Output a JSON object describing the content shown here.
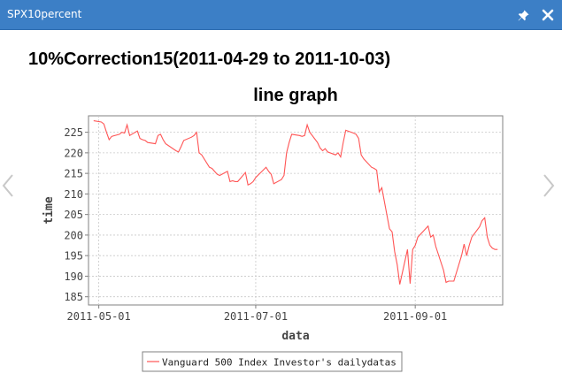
{
  "window": {
    "title": "SPX10percent",
    "pin_icon": "pin-icon",
    "close_icon": "close-icon",
    "prev_icon": "chevron-left-icon",
    "next_icon": "chevron-right-icon"
  },
  "heading": "10%Correction15(2011-04-29 to 2011-10-03)",
  "colors": {
    "titlebar": "#3c7fc6",
    "series": "#ff5555"
  },
  "chart_data": {
    "type": "line",
    "title": "line graph",
    "xlabel": "data",
    "ylabel": "time",
    "x_ticks": [
      "2011-05-01",
      "2011-07-01",
      "2011-09-01"
    ],
    "y_ticks": [
      185,
      190,
      195,
      200,
      205,
      210,
      215,
      220,
      225
    ],
    "xlim": [
      "2011-04-27",
      "2011-10-05"
    ],
    "ylim": [
      183,
      229
    ],
    "grid": true,
    "legend_position": "bottom",
    "series": [
      {
        "name": "Vanguard 500 Index Investor's dailydatas",
        "color": "#ff5555",
        "points": [
          [
            "2011-04-29",
            227.8
          ],
          [
            "2011-05-02",
            227.5
          ],
          [
            "2011-05-03",
            227.0
          ],
          [
            "2011-05-04",
            225.0
          ],
          [
            "2011-05-05",
            223.2
          ],
          [
            "2011-05-06",
            224.0
          ],
          [
            "2011-05-09",
            224.5
          ],
          [
            "2011-05-10",
            225.0
          ],
          [
            "2011-05-11",
            224.8
          ],
          [
            "2011-05-12",
            226.8
          ],
          [
            "2011-05-13",
            224.2
          ],
          [
            "2011-05-16",
            225.3
          ],
          [
            "2011-05-17",
            223.5
          ],
          [
            "2011-05-18",
            223.2
          ],
          [
            "2011-05-19",
            223.0
          ],
          [
            "2011-05-20",
            222.5
          ],
          [
            "2011-05-23",
            222.2
          ],
          [
            "2011-05-24",
            224.2
          ],
          [
            "2011-05-25",
            224.5
          ],
          [
            "2011-05-26",
            223.2
          ],
          [
            "2011-05-27",
            222.2
          ],
          [
            "2011-05-31",
            220.5
          ],
          [
            "2011-06-01",
            220.2
          ],
          [
            "2011-06-02",
            221.5
          ],
          [
            "2011-06-03",
            223.0
          ],
          [
            "2011-06-06",
            223.8
          ],
          [
            "2011-06-07",
            224.2
          ],
          [
            "2011-06-08",
            225.0
          ],
          [
            "2011-06-09",
            220.0
          ],
          [
            "2011-06-10",
            219.5
          ],
          [
            "2011-06-13",
            216.5
          ],
          [
            "2011-06-14",
            216.2
          ],
          [
            "2011-06-15",
            215.5
          ],
          [
            "2011-06-16",
            214.8
          ],
          [
            "2011-06-17",
            214.5
          ],
          [
            "2011-06-20",
            215.5
          ],
          [
            "2011-06-21",
            213.0
          ],
          [
            "2011-06-22",
            213.2
          ],
          [
            "2011-06-23",
            213.0
          ],
          [
            "2011-06-24",
            213.0
          ],
          [
            "2011-06-27",
            215.2
          ],
          [
            "2011-06-28",
            212.2
          ],
          [
            "2011-06-29",
            212.5
          ],
          [
            "2011-06-30",
            213.0
          ],
          [
            "2011-07-01",
            214.0
          ],
          [
            "2011-07-05",
            216.5
          ],
          [
            "2011-07-06",
            215.5
          ],
          [
            "2011-07-07",
            214.8
          ],
          [
            "2011-07-08",
            212.5
          ],
          [
            "2011-07-11",
            213.5
          ],
          [
            "2011-07-12",
            214.5
          ],
          [
            "2011-07-13",
            220.0
          ],
          [
            "2011-07-14",
            222.5
          ],
          [
            "2011-07-15",
            224.5
          ],
          [
            "2011-07-18",
            224.2
          ],
          [
            "2011-07-19",
            224.0
          ],
          [
            "2011-07-20",
            224.2
          ],
          [
            "2011-07-21",
            226.8
          ],
          [
            "2011-07-22",
            225.0
          ],
          [
            "2011-07-25",
            222.5
          ],
          [
            "2011-07-26",
            221.2
          ],
          [
            "2011-07-27",
            220.5
          ],
          [
            "2011-07-28",
            221.0
          ],
          [
            "2011-07-29",
            220.2
          ],
          [
            "2011-08-01",
            219.5
          ],
          [
            "2011-08-02",
            220.0
          ],
          [
            "2011-08-03",
            219.0
          ],
          [
            "2011-08-04",
            222.5
          ],
          [
            "2011-08-05",
            225.5
          ],
          [
            "2011-08-08",
            224.8
          ],
          [
            "2011-08-09",
            224.5
          ],
          [
            "2011-08-10",
            223.5
          ],
          [
            "2011-08-11",
            219.5
          ],
          [
            "2011-08-12",
            218.5
          ],
          [
            "2011-08-15",
            216.5
          ],
          [
            "2011-08-16",
            216.2
          ],
          [
            "2011-08-17",
            215.8
          ],
          [
            "2011-08-18",
            210.5
          ],
          [
            "2011-08-19",
            211.5
          ],
          [
            "2011-08-22",
            201.5
          ],
          [
            "2011-08-23",
            200.8
          ],
          [
            "2011-08-24",
            196.0
          ],
          [
            "2011-08-25",
            192.8
          ],
          [
            "2011-08-26",
            188.0
          ],
          [
            "2011-08-29",
            196.5
          ],
          [
            "2011-08-30",
            188.2
          ],
          [
            "2011-08-31",
            196.5
          ],
          [
            "2011-09-01",
            197.5
          ],
          [
            "2011-09-02",
            199.5
          ],
          [
            "2011-09-06",
            202.2
          ],
          [
            "2011-09-07",
            199.5
          ],
          [
            "2011-09-08",
            200.0
          ],
          [
            "2011-09-09",
            197.2
          ],
          [
            "2011-09-12",
            191.5
          ],
          [
            "2011-09-13",
            188.5
          ],
          [
            "2011-09-14",
            188.8
          ],
          [
            "2011-09-15",
            188.8
          ],
          [
            "2011-09-16",
            188.8
          ],
          [
            "2011-09-19",
            195.0
          ],
          [
            "2011-09-20",
            197.8
          ],
          [
            "2011-09-21",
            195.0
          ],
          [
            "2011-09-22",
            197.5
          ],
          [
            "2011-09-23",
            199.5
          ],
          [
            "2011-09-26",
            202.0
          ],
          [
            "2011-09-27",
            203.5
          ],
          [
            "2011-09-28",
            204.2
          ],
          [
            "2011-09-29",
            199.5
          ],
          [
            "2011-09-30",
            197.5
          ],
          [
            "2011-10-01",
            196.8
          ],
          [
            "2011-10-02",
            196.5
          ],
          [
            "2011-10-03",
            196.5
          ]
        ]
      }
    ]
  }
}
